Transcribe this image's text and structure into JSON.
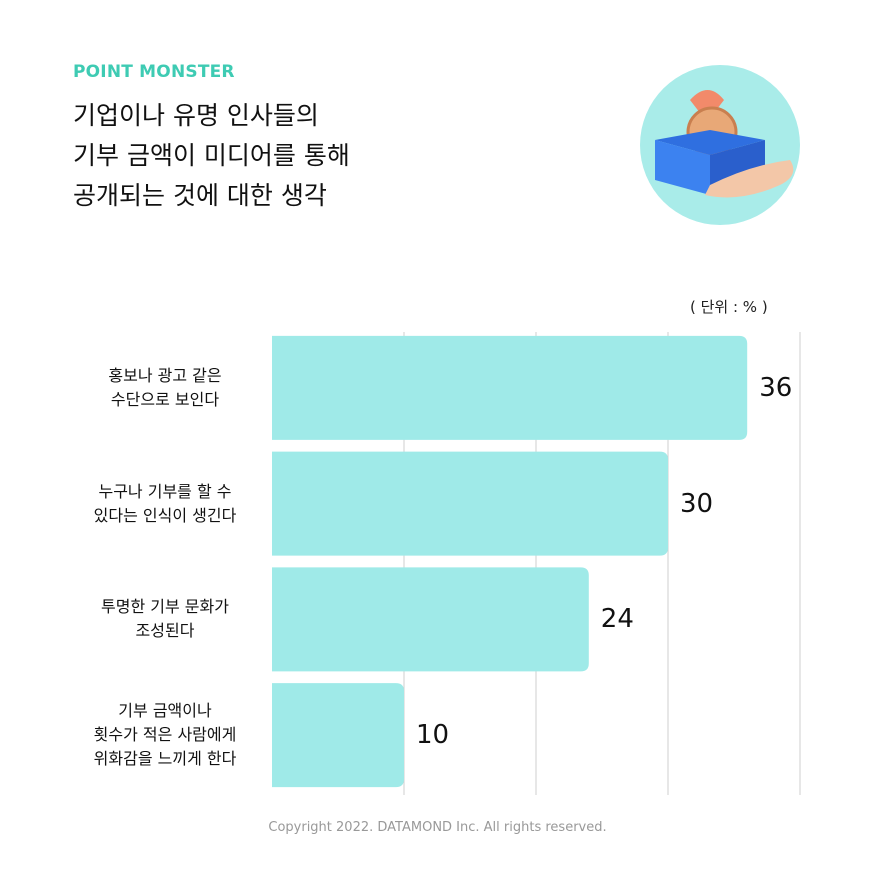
{
  "brand": "POINT MONSTER",
  "chart_data": {
    "type": "bar",
    "orientation": "horizontal",
    "title": "기업이나 유명 인사들의\n기부 금액이 미디어를 통해\n공개되는 것에 대한 생각",
    "unit_label": "( 단위 : % )",
    "categories": [
      "홍보나 광고 같은\n수단으로 보인다",
      "누구나 기부를 할 수\n있다는 인식이 생긴다",
      "투명한 기부 문화가\n조성된다",
      "기부 금액이나\n횟수가 적은 사람에게\n위화감을 느끼게 한다"
    ],
    "values": [
      36,
      30,
      24,
      10
    ],
    "color": "#9feae8",
    "xlim": [
      0,
      40
    ],
    "xticks": [
      10,
      20,
      30,
      40
    ],
    "grid": true
  },
  "footer": "Copyright 2022. DATAMOND Inc. All rights reserved."
}
